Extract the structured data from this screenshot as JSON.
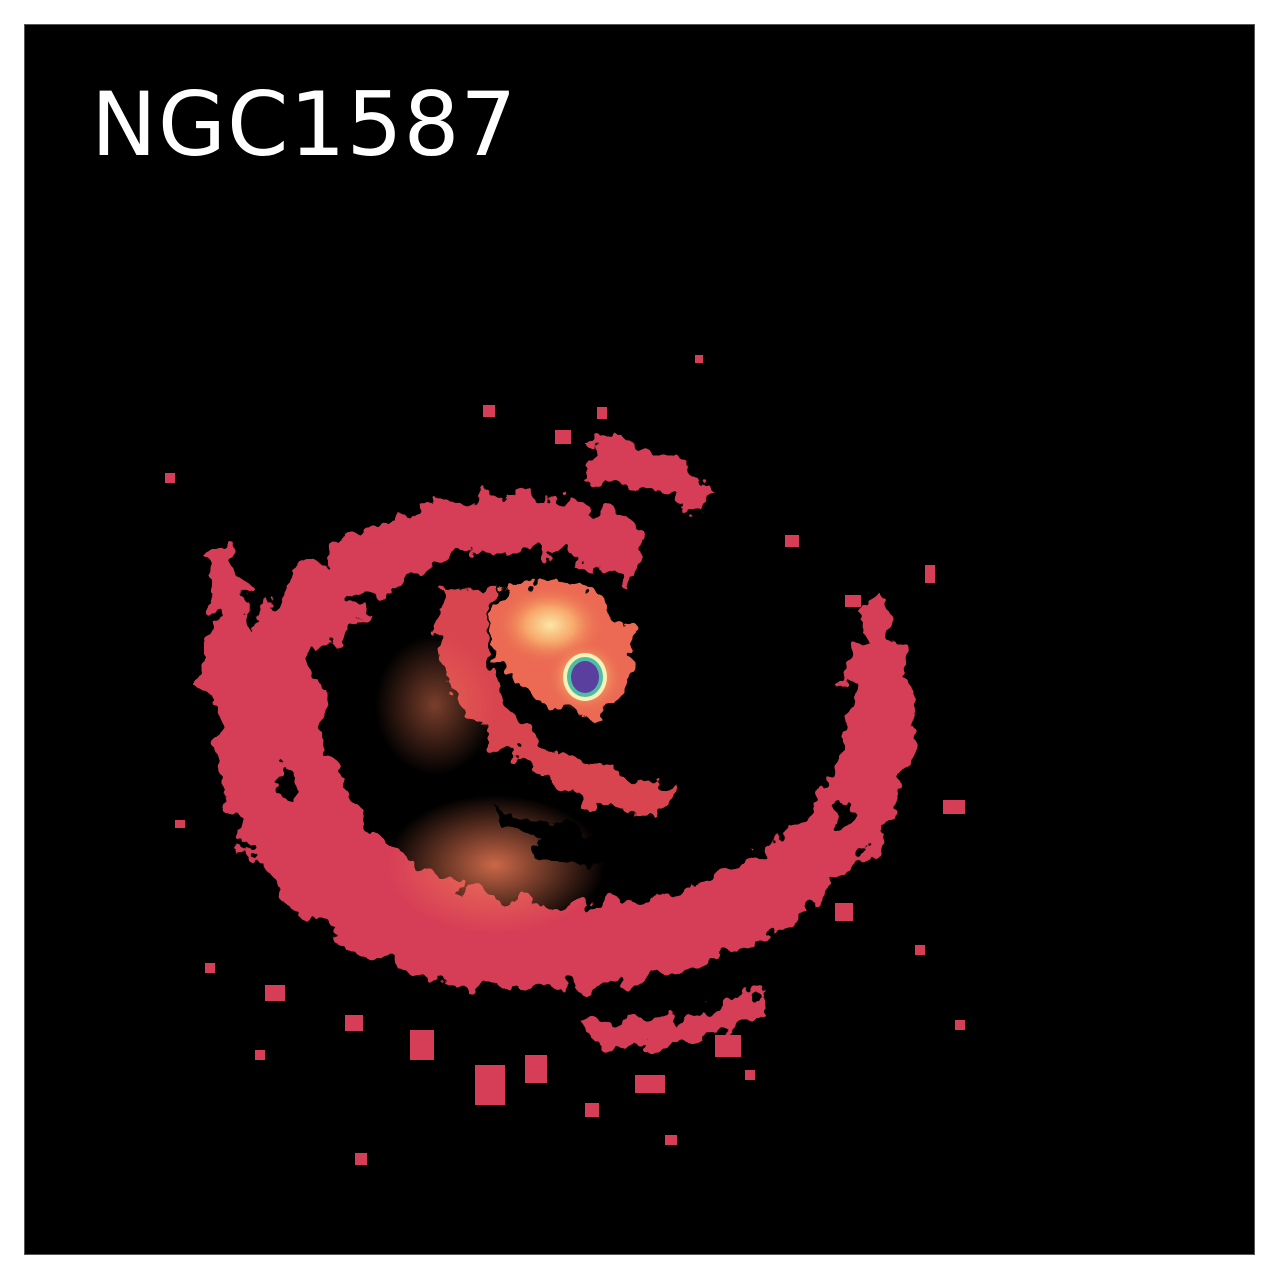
{
  "image": {
    "label": "NGC1587",
    "colors": {
      "background": "#000000",
      "emission_low": "#d23a55",
      "emission_mid": "#e85a4a",
      "emission_high": "#f7a36a",
      "core_ring": "#fbf7c0",
      "core_center": "#5b3f9f"
    }
  }
}
